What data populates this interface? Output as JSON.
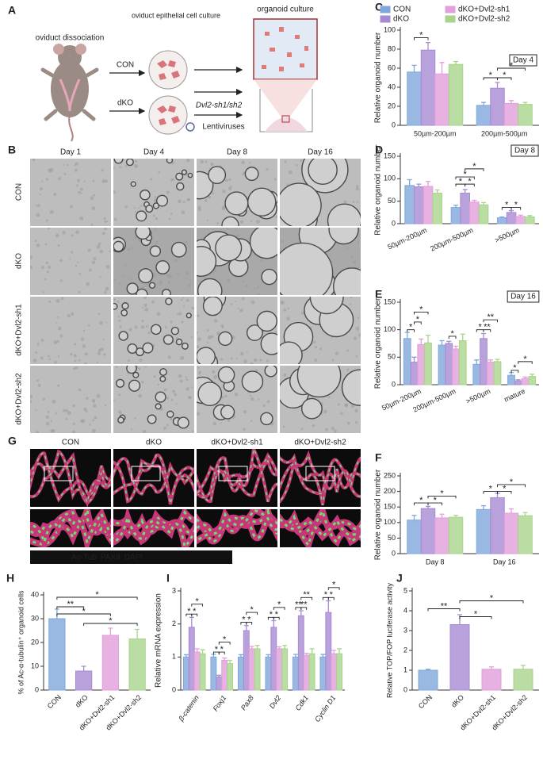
{
  "diagram": {
    "panel": "A",
    "labels": {
      "dissociation": "oviduct dissociation",
      "epithelial": "oviduct epithelial cell culture",
      "organoid": "organoid culture",
      "con": "CON",
      "dko": "dKO",
      "shrna": "Dvl2-sh1/sh2",
      "virus": "Lentiviruses"
    }
  },
  "micrographs": {
    "panel": "B",
    "columns": [
      "Day 1",
      "Day 4",
      "Day 8",
      "Day 16"
    ],
    "rows": [
      "CON",
      "dKO",
      "dKO+Dvl2-sh1",
      "dKO+Dvl2-sh2"
    ]
  },
  "fluorescence": {
    "panel": "G",
    "columns": [
      "CON",
      "dKO",
      "dKO+Dvl2-sh1",
      "dKO+Dvl2-sh2"
    ],
    "stains": [
      "Ac-Tub",
      "PAX8",
      "DAPI"
    ]
  },
  "chart_data": [
    {
      "panel": "C",
      "type": "bar",
      "annotation": "Day 4",
      "ylabel": "Relative organoid number",
      "legend": "top",
      "categories": [
        "50µm-200µm",
        "200µm-500µm"
      ],
      "series": [
        {
          "name": "CON",
          "color": "#7fa7dc",
          "values": [
            56,
            21
          ],
          "errors": [
            7,
            3
          ]
        },
        {
          "name": "dKO",
          "color": "#a78bd2",
          "values": [
            79,
            39
          ],
          "errors": [
            8,
            6
          ]
        },
        {
          "name": "dKO+Dvl2-sh1",
          "color": "#e19fdb",
          "values": [
            54,
            23
          ],
          "errors": [
            12,
            3
          ]
        },
        {
          "name": "dKO+Dvl2-sh2",
          "color": "#a9d48c",
          "values": [
            64,
            22
          ],
          "errors": [
            3,
            2
          ]
        }
      ],
      "ylim": [
        0,
        100
      ],
      "yticks": [
        0,
        20,
        40,
        60,
        80,
        100
      ],
      "significance": [
        "*",
        "*",
        "*",
        "*"
      ]
    },
    {
      "panel": "D",
      "type": "bar",
      "annotation": "Day 8",
      "ylabel": "Relative organoid number",
      "categories": [
        "50µm-200µm",
        "200µm-500µm",
        ">500µm"
      ],
      "series": [
        {
          "color": "#7fa7dc",
          "values": [
            85,
            36,
            13
          ],
          "errors": [
            13,
            5,
            2
          ]
        },
        {
          "color": "#a78bd2",
          "values": [
            82,
            68,
            25
          ],
          "errors": [
            6,
            8,
            4
          ]
        },
        {
          "color": "#e19fdb",
          "values": [
            83,
            48,
            16
          ],
          "errors": [
            11,
            4,
            3
          ]
        },
        {
          "color": "#a9d48c",
          "values": [
            68,
            42,
            15
          ],
          "errors": [
            7,
            5,
            3
          ]
        }
      ],
      "ylim": [
        0,
        150
      ],
      "yticks": [
        0,
        50,
        100,
        150
      ],
      "significance": [
        "*",
        "*",
        "*",
        "*",
        "*",
        "*"
      ]
    },
    {
      "panel": "E",
      "type": "bar",
      "annotation": "Day 16",
      "ylabel": "Relative organoid number",
      "categories": [
        "50µm-200µm",
        "200µm-500µm",
        ">500µm",
        "mature"
      ],
      "series": [
        {
          "color": "#7fa7dc",
          "values": [
            84,
            72,
            37,
            17
          ],
          "errors": [
            11,
            8,
            8,
            5
          ]
        },
        {
          "color": "#a78bd2",
          "values": [
            41,
            75,
            84,
            7
          ],
          "errors": [
            9,
            4,
            9,
            2
          ]
        },
        {
          "color": "#e19fdb",
          "values": [
            73,
            65,
            41,
            11
          ],
          "errors": [
            10,
            5,
            4,
            3
          ]
        },
        {
          "color": "#a9d48c",
          "values": [
            76,
            80,
            42,
            15
          ],
          "errors": [
            14,
            12,
            4,
            4
          ]
        }
      ],
      "ylim": [
        0,
        150
      ],
      "yticks": [
        0,
        50,
        100,
        150
      ],
      "significance": [
        "*",
        "*",
        "*",
        "*",
        "*",
        "**",
        "**",
        "*",
        "*"
      ]
    },
    {
      "panel": "F",
      "type": "bar",
      "ylabel": "Relative organoid number",
      "categories": [
        "Day 8",
        "Day 16"
      ],
      "series": [
        {
          "color": "#7fa7dc",
          "values": [
            108,
            142
          ],
          "errors": [
            15,
            12
          ]
        },
        {
          "color": "#a78bd2",
          "values": [
            145,
            180
          ],
          "errors": [
            7,
            14
          ]
        },
        {
          "color": "#e19fdb",
          "values": [
            115,
            130
          ],
          "errors": [
            12,
            14
          ]
        },
        {
          "color": "#a9d48c",
          "values": [
            117,
            122
          ],
          "errors": [
            6,
            10
          ]
        }
      ],
      "ylim": [
        0,
        250
      ],
      "yticks": [
        0,
        50,
        100,
        150,
        200,
        250
      ],
      "significance": [
        "*",
        "*",
        "*",
        "*",
        "*",
        "*"
      ]
    },
    {
      "panel": "H",
      "type": "bar",
      "ylabel": "% of Ac-α-tubulin⁺ organoid cells",
      "categories": [
        "CON",
        "dKO",
        "dKO+Dvl2-sh1",
        "dKO+Dvl2-sh2"
      ],
      "values": [
        30,
        8,
        23,
        21.5
      ],
      "errors": [
        4,
        2,
        3,
        4
      ],
      "colors": [
        "#7fa7dc",
        "#a78bd2",
        "#e19fdb",
        "#a9d48c"
      ],
      "ylim": [
        0,
        40
      ],
      "yticks": [
        0,
        10,
        20,
        30,
        40
      ],
      "significance": [
        "*",
        "**",
        "*",
        "*"
      ]
    },
    {
      "panel": "I",
      "type": "bar",
      "ylabel": "Relative mRNA expression",
      "categories": [
        "β-catenin",
        "Foxj1",
        "Pax8",
        "Dvl2",
        "Cdk1",
        "Cyclin D1"
      ],
      "series": [
        {
          "color": "#7fa7dc",
          "values": [
            1,
            1,
            1,
            1,
            1,
            1
          ],
          "errors": [
            0.07,
            0.08,
            0.07,
            0.07,
            0.08,
            0.08
          ]
        },
        {
          "color": "#a78bd2",
          "values": [
            1.9,
            0.4,
            1.8,
            1.9,
            2.25,
            2.35
          ],
          "errors": [
            0.3,
            0.05,
            0.15,
            0.2,
            0.15,
            0.35
          ]
        },
        {
          "color": "#e19fdb",
          "values": [
            1.15,
            0.9,
            1.25,
            1.25,
            1.05,
            1.1
          ],
          "errors": [
            0.1,
            0.07,
            0.07,
            0.06,
            0.06,
            0.1
          ]
        },
        {
          "color": "#a9d48c",
          "values": [
            1.1,
            0.8,
            1.25,
            1.25,
            1.1,
            1.1
          ],
          "errors": [
            0.12,
            0.1,
            0.1,
            0.1,
            0.15,
            0.15
          ]
        }
      ],
      "ylim": [
        0,
        3
      ],
      "yticks": [
        0,
        1,
        2,
        3
      ],
      "significance": [
        "*",
        "*",
        "*",
        "*",
        "*",
        "*",
        "*",
        "*",
        "*",
        "*",
        "*",
        "*",
        "**",
        "**",
        "**",
        "*",
        "*",
        "*"
      ]
    },
    {
      "panel": "J",
      "type": "bar",
      "ylabel": "Relative TOP/FOP luciferase activity",
      "categories": [
        "CON",
        "dKO",
        "dKO+Dvl2-sh1",
        "dKO+Dvl2-sh2"
      ],
      "values": [
        1,
        3.3,
        1.05,
        1.05
      ],
      "errors": [
        0.05,
        0.5,
        0.12,
        0.2
      ],
      "colors": [
        "#7fa7dc",
        "#a78bd2",
        "#e19fdb",
        "#a9d48c"
      ],
      "ylim": [
        0,
        5
      ],
      "yticks": [
        0,
        1,
        2,
        3,
        4,
        5
      ],
      "significance": [
        "**",
        "*",
        "*"
      ]
    }
  ]
}
